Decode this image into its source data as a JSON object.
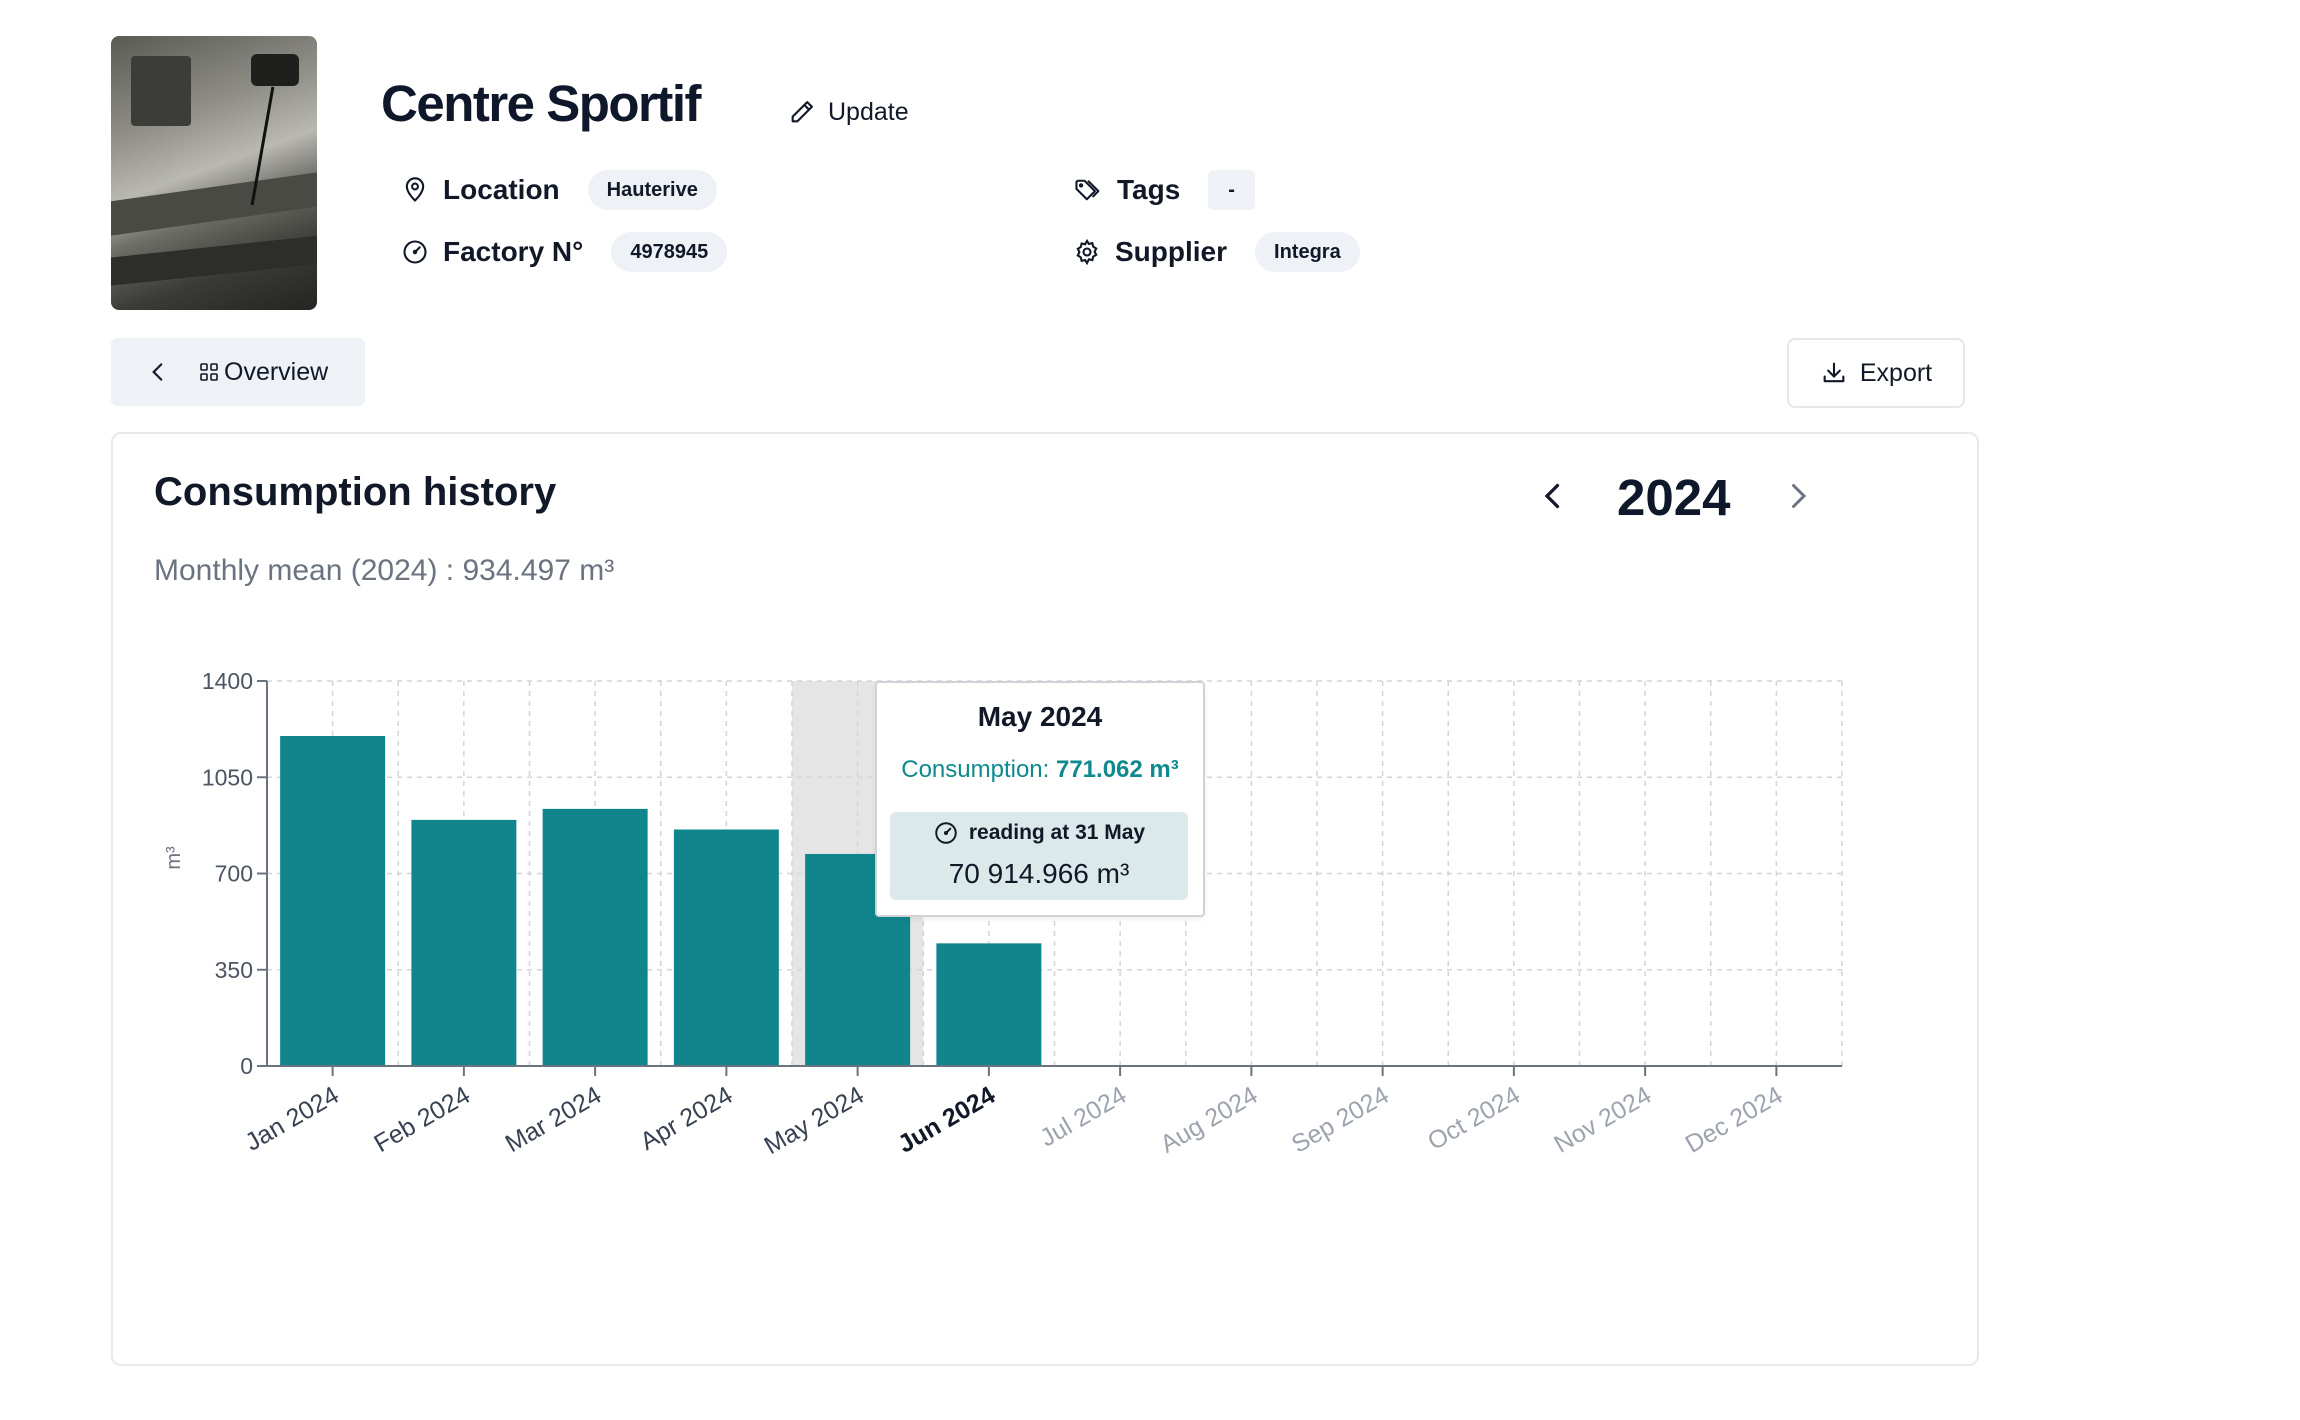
{
  "header": {
    "title": "Centre Sportif",
    "update_label": "Update",
    "fields": {
      "location": {
        "label": "Location",
        "value": "Hauterive"
      },
      "factory": {
        "label": "Factory N°",
        "value": "4978945"
      },
      "tags": {
        "label": "Tags",
        "value": "-"
      },
      "supplier": {
        "label": "Supplier",
        "value": "Integra"
      }
    }
  },
  "toolbar": {
    "overview_label": "Overview",
    "export_label": "Export"
  },
  "card": {
    "title": "Consumption history",
    "mean": "Monthly mean (2024) : 934.497 m³",
    "year": "2024"
  },
  "tooltip": {
    "title": "May 2024",
    "consumption_label": "Consumption:",
    "consumption_value": "771.062 m³",
    "reading_label": "reading at 31 May",
    "reading_value": "70 914.966 m³"
  },
  "colors": {
    "bar": "#10868c",
    "accent": "#0e8a8e"
  },
  "chart_data": {
    "type": "bar",
    "categories": [
      "Jan 2024",
      "Feb 2024",
      "Mar 2024",
      "Apr 2024",
      "May 2024",
      "Jun 2024",
      "Jul 2024",
      "Aug 2024",
      "Sep 2024",
      "Oct 2024",
      "Nov 2024",
      "Dec 2024"
    ],
    "values": [
      1200,
      895,
      935,
      860,
      771.062,
      446,
      null,
      null,
      null,
      null,
      null,
      null
    ],
    "ylabel": "m³",
    "ylim": [
      0,
      1400
    ],
    "yticks": [
      "0",
      "350",
      "700",
      "1050",
      "1400"
    ],
    "highlighted_category": "May 2024",
    "current_category": "Jun 2024",
    "grid": true
  }
}
